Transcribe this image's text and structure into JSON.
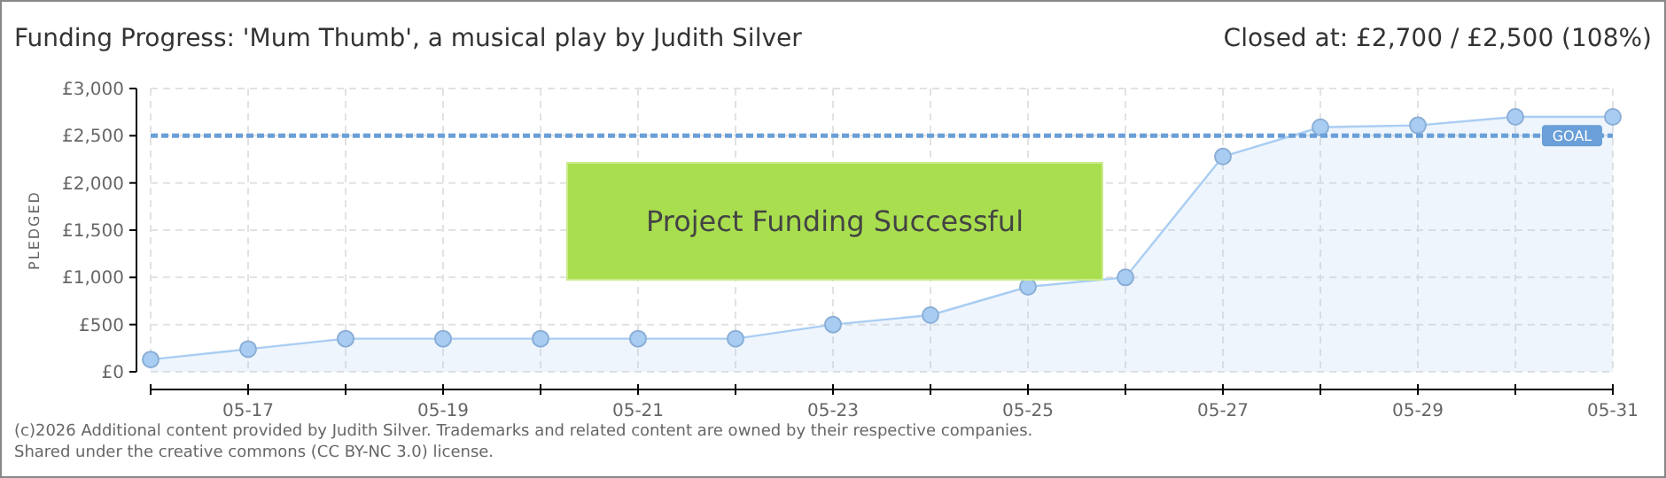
{
  "chart_data": {
    "type": "area",
    "title": "Funding Progress: 'Mum Thumb', a musical play by Judith Silver",
    "subtitle": "Closed at:  £2,700 / £2,500 (108%)",
    "ylabel": "PLEDGED",
    "x": [
      "--05-16",
      "--05-17",
      "--05-18",
      "--05-19",
      "--05-20",
      "--05-21",
      "--05-22",
      "--05-23",
      "--05-24",
      "--05-25",
      "--05-26",
      "--05-27",
      "--05-28",
      "--05-29",
      "--05-30",
      "--05-31"
    ],
    "series": [
      {
        "color": "#a9cdf2",
        "values": [
          130,
          240,
          350,
          350,
          350,
          350,
          350,
          500,
          600,
          900,
          1000,
          2280,
          2590,
          2610,
          2700,
          2700
        ]
      }
    ],
    "xlim": [
      "--05-16",
      "--05-31"
    ],
    "xticks": [
      {
        "value": "--05-16",
        "label": null
      },
      {
        "value": "--05-17",
        "label": "05-17"
      },
      {
        "value": "--05-18",
        "label": null
      },
      {
        "value": "--05-19",
        "label": "05-19"
      },
      {
        "value": "--05-20",
        "label": null
      },
      {
        "value": "--05-21",
        "label": "05-21"
      },
      {
        "value": "--05-22",
        "label": null
      },
      {
        "value": "--05-23",
        "label": "05-23"
      },
      {
        "value": "--05-24",
        "label": null
      },
      {
        "value": "--05-25",
        "label": "05-25"
      },
      {
        "value": "--05-26",
        "label": null
      },
      {
        "value": "--05-27",
        "label": "05-27"
      },
      {
        "value": "--05-28",
        "label": null
      },
      {
        "value": "--05-29",
        "label": "05-29"
      },
      {
        "value": "--05-30",
        "label": null
      },
      {
        "value": "--05-31",
        "label": "05-31"
      }
    ],
    "ylim": [
      0,
      3000
    ],
    "yticks": [
      {
        "value": 0,
        "label": "£0"
      },
      {
        "value": 500,
        "label": "£500"
      },
      {
        "value": 1000,
        "label": "£1,000"
      },
      {
        "value": 1500,
        "label": "£1,500"
      },
      {
        "value": 2000,
        "label": "£2,000"
      },
      {
        "value": 2500,
        "label": "£2,500"
      },
      {
        "value": 3000,
        "label": "£3,000"
      }
    ],
    "grid": true,
    "marker": "circle",
    "ref_lines": [
      {
        "axis": "y",
        "value": 2500,
        "label": "GOAL",
        "color": "#6a9fd8",
        "line_style": "dashed"
      }
    ],
    "annotations": [
      "Project Funding Successful",
      "(c)2026 Additional content provided by Judith Silver. Trademarks and related content are owned by their respective companies.",
      "Shared under the creative commons (CC BY-NC 3.0) license."
    ]
  }
}
